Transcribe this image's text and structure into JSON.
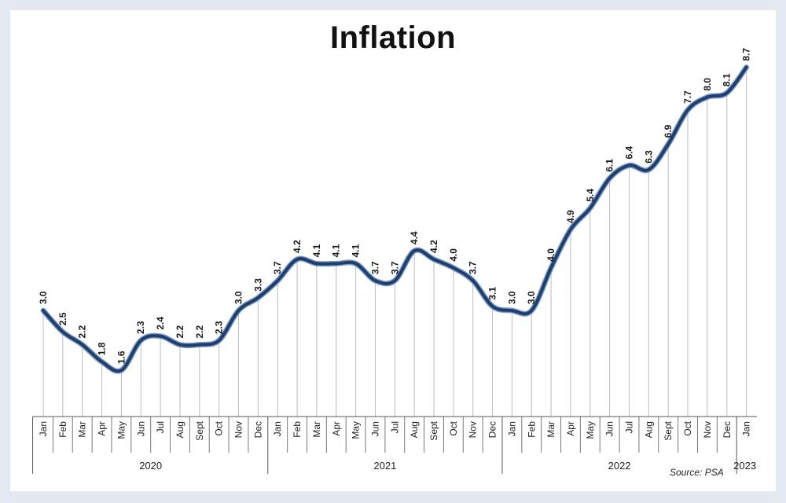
{
  "chart_data": {
    "type": "line",
    "title": "Inflation",
    "source": "Source: PSA",
    "xlabel": "",
    "ylabel": "",
    "ylim": [
      0,
      10
    ],
    "grid": false,
    "legend": "none",
    "line_color": "#1e3f6c",
    "year_groups": [
      {
        "year": "2020",
        "start": 0,
        "end": 11
      },
      {
        "year": "2021",
        "start": 12,
        "end": 23
      },
      {
        "year": "2022",
        "start": 24,
        "end": 35
      },
      {
        "year": "2023",
        "start": 36,
        "end": 36
      }
    ],
    "categories": [
      "Jan",
      "Feb",
      "Mar",
      "Apr",
      "May",
      "Jun",
      "Jul",
      "Aug",
      "Sept",
      "Oct",
      "Nov",
      "Dec",
      "Jan",
      "Feb",
      "Mar",
      "Apr",
      "May",
      "Jun",
      "Jul",
      "Aug",
      "Sept",
      "Oct",
      "Nov",
      "Dec",
      "Jan",
      "Feb",
      "Mar",
      "Apr",
      "May",
      "Jun",
      "Jul",
      "Aug",
      "Sept",
      "Oct",
      "Nov",
      "Dec",
      "Jan"
    ],
    "values": [
      3.0,
      2.5,
      2.2,
      1.8,
      1.6,
      2.3,
      2.4,
      2.2,
      2.2,
      2.3,
      3.0,
      3.3,
      3.7,
      4.2,
      4.1,
      4.1,
      4.1,
      3.7,
      3.7,
      4.4,
      4.2,
      4.0,
      3.7,
      3.1,
      3.0,
      3.0,
      4.0,
      4.9,
      5.4,
      6.1,
      6.4,
      6.3,
      6.9,
      7.7,
      8.0,
      8.1,
      8.7
    ],
    "labels": [
      "3.0",
      "2.5",
      "2.2",
      "1.8",
      "1.6",
      "2.3",
      "2.4",
      "2.2",
      "2.2",
      "2.3",
      "3.0",
      "3.3",
      "3.7",
      "4.2",
      "4.1",
      "4.1",
      "4.1",
      "3.7",
      "3.7",
      "4.4",
      "4.2",
      "4.0",
      "3.7",
      "3.1",
      "3.0",
      "3.0",
      "4.0",
      "4.9",
      "5.4",
      "6.1",
      "6.4",
      "6.3",
      "6.9",
      "7.7",
      "8.0",
      "8.1",
      "8.7"
    ]
  }
}
